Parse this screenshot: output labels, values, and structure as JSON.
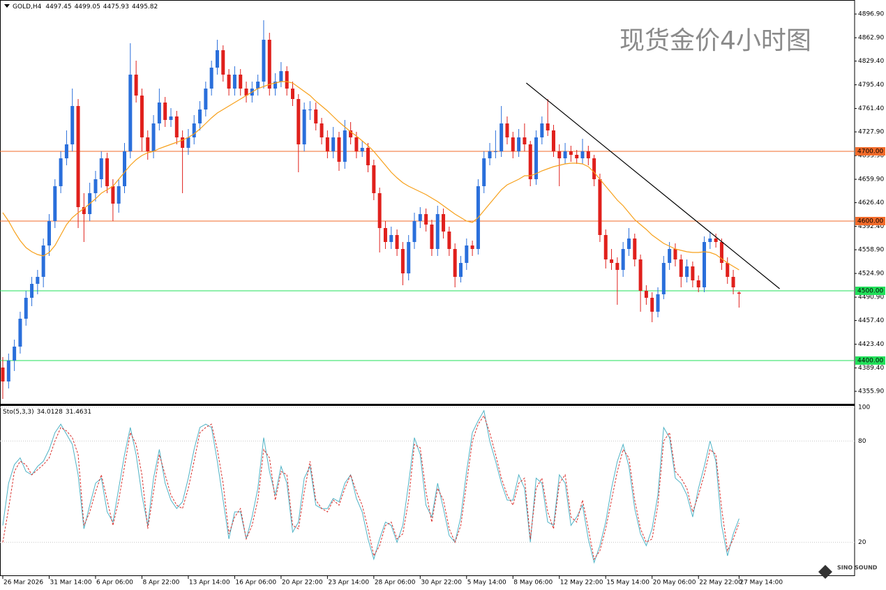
{
  "chart_data": {
    "type": "candlestick",
    "symbol_label": "GOLD,H4",
    "title": "现货金价4小时图",
    "watermark": "SINO SOUND",
    "up_color": "#2a6fdb",
    "down_color": "#e0201c",
    "categories": [
      "26 Mar 2026",
      null,
      null,
      null,
      null,
      null,
      null,
      null,
      "31 Mar 14:00",
      null,
      null,
      null,
      null,
      null,
      null,
      null,
      "6 Apr 06:00",
      null,
      null,
      null,
      null,
      null,
      null,
      null,
      "8 Apr 22:00",
      null,
      null,
      null,
      null,
      null,
      null,
      null,
      "13 Apr 14:00",
      null,
      null,
      null,
      null,
      null,
      null,
      null,
      "16 Apr 06:00",
      null,
      null,
      null,
      null,
      null,
      null,
      null,
      "20 Apr 22:00",
      null,
      null,
      null,
      null,
      null,
      null,
      null,
      "23 Apr 14:00",
      null,
      null,
      null,
      null,
      null,
      null,
      null,
      "28 Apr 06:00",
      null,
      null,
      null,
      null,
      null,
      null,
      null,
      "30 Apr 22:00",
      null,
      null,
      null,
      null,
      null,
      null,
      null,
      "5 May 14:00",
      null,
      null,
      null,
      null,
      null,
      null,
      null,
      "8 May 06:00",
      null,
      null,
      null,
      null,
      null,
      null,
      null,
      "12 May 22:00",
      null,
      null,
      null,
      null,
      null,
      null,
      null,
      "15 May 14:00",
      null,
      null,
      null,
      null,
      null,
      null,
      null,
      "20 May 06:00",
      null,
      null,
      null,
      null,
      null,
      null,
      null,
      "22 May 22:00",
      null,
      null,
      null,
      null,
      null,
      null,
      "27 May 14:00"
    ],
    "open": [
      4390,
      4370,
      4400,
      4420,
      4460,
      4490,
      4510,
      4520,
      4565,
      4600,
      4650,
      4690,
      4710,
      4765,
      4620,
      4610,
      4640,
      4660,
      4690,
      4650,
      4625,
      4650,
      4700,
      4810,
      4780,
      4720,
      4700,
      4740,
      4770,
      4745,
      4750,
      4720,
      4705,
      4720,
      4740,
      4760,
      4790,
      4820,
      4845,
      4810,
      4790,
      4810,
      4790,
      4780,
      4790,
      4800,
      4860,
      4790,
      4800,
      4815,
      4790,
      4775,
      4710,
      4760,
      4760,
      4740,
      4720,
      4700,
      4720,
      4685,
      4730,
      4720,
      4700,
      4705,
      4680,
      4640,
      4590,
      4570,
      4580,
      4560,
      4525,
      4570,
      4600,
      4610,
      4595,
      4560,
      4610,
      4585,
      4560,
      4520,
      4540,
      4565,
      4560,
      4650,
      4690,
      4700,
      4700,
      4740,
      4720,
      4700,
      4720,
      4710,
      4660,
      4720,
      4740,
      4730,
      4700,
      4690,
      4700,
      4695,
      4690,
      4700,
      4690,
      4660,
      4580,
      4545,
      4540,
      4530,
      4560,
      4575,
      4545,
      4500,
      4490,
      4470,
      4495,
      4540,
      4560,
      4545,
      4520,
      4535,
      4515,
      4505,
      4570,
      4575,
      4570,
      4540,
      4520,
      4497.45
    ],
    "high": [
      4405,
      4410,
      4430,
      4470,
      4500,
      4520,
      4530,
      4575,
      4610,
      4660,
      4700,
      4730,
      4790,
      4775,
      4640,
      4655,
      4672,
      4700,
      4698,
      4660,
      4660,
      4712,
      4855,
      4830,
      4790,
      4730,
      4752,
      4790,
      4778,
      4762,
      4758,
      4730,
      4732,
      4752,
      4772,
      4800,
      4830,
      4860,
      4852,
      4818,
      4822,
      4818,
      4800,
      4800,
      4810,
      4888,
      4870,
      4812,
      4828,
      4822,
      4800,
      4782,
      4770,
      4772,
      4770,
      4748,
      4730,
      4735,
      4728,
      4745,
      4742,
      4728,
      4715,
      4712,
      4688,
      4648,
      4600,
      4592,
      4588,
      4570,
      4580,
      4612,
      4620,
      4618,
      4602,
      4622,
      4618,
      4592,
      4568,
      4550,
      4575,
      4572,
      4660,
      4700,
      4712,
      4730,
      4765,
      4750,
      4728,
      4732,
      4740,
      4715,
      4730,
      4750,
      4775,
      4738,
      4710,
      4712,
      4708,
      4702,
      4718,
      4708,
      4695,
      4668,
      4588,
      4560,
      4548,
      4570,
      4590,
      4582,
      4552,
      4508,
      4498,
      4505,
      4550,
      4570,
      4568,
      4552,
      4545,
      4542,
      4522,
      4578,
      4585,
      4582,
      4575,
      4548,
      4530,
      4499.05
    ],
    "low": [
      4345,
      4360,
      4385,
      4410,
      4450,
      4478,
      4495,
      4505,
      4550,
      4590,
      4640,
      4680,
      4700,
      4590,
      4570,
      4600,
      4628,
      4648,
      4640,
      4600,
      4612,
      4640,
      4690,
      4770,
      4700,
      4688,
      4690,
      4730,
      4735,
      4735,
      4710,
      4640,
      4695,
      4710,
      4730,
      4750,
      4780,
      4810,
      4800,
      4780,
      4780,
      4780,
      4770,
      4770,
      4780,
      4790,
      4780,
      4780,
      4792,
      4780,
      4765,
      4670,
      4700,
      4745,
      4730,
      4710,
      4690,
      4690,
      4672,
      4675,
      4710,
      4690,
      4692,
      4670,
      4630,
      4555,
      4560,
      4560,
      4550,
      4508,
      4515,
      4560,
      4590,
      4585,
      4550,
      4550,
      4575,
      4550,
      4505,
      4512,
      4530,
      4550,
      4552,
      4640,
      4680,
      4690,
      4692,
      4710,
      4690,
      4692,
      4700,
      4650,
      4652,
      4710,
      4722,
      4692,
      4650,
      4682,
      4685,
      4682,
      4682,
      4680,
      4650,
      4570,
      4532,
      4530,
      4480,
      4520,
      4550,
      4535,
      4470,
      4480,
      4455,
      4462,
      4488,
      4530,
      4535,
      4505,
      4512,
      4505,
      4498,
      4498,
      4560,
      4562,
      4530,
      4510,
      4495,
      4475.93
    ],
    "close": [
      4370,
      4400,
      4420,
      4460,
      4490,
      4510,
      4520,
      4565,
      4600,
      4650,
      4690,
      4710,
      4765,
      4620,
      4610,
      4640,
      4660,
      4690,
      4650,
      4625,
      4650,
      4700,
      4810,
      4780,
      4720,
      4700,
      4740,
      4770,
      4745,
      4750,
      4720,
      4705,
      4720,
      4740,
      4760,
      4790,
      4820,
      4845,
      4810,
      4790,
      4810,
      4790,
      4780,
      4790,
      4800,
      4860,
      4790,
      4800,
      4815,
      4790,
      4775,
      4710,
      4760,
      4760,
      4740,
      4720,
      4700,
      4720,
      4685,
      4730,
      4720,
      4700,
      4705,
      4680,
      4640,
      4590,
      4570,
      4580,
      4560,
      4525,
      4570,
      4600,
      4610,
      4595,
      4560,
      4610,
      4585,
      4560,
      4520,
      4540,
      4565,
      4560,
      4650,
      4690,
      4700,
      4700,
      4740,
      4720,
      4700,
      4720,
      4710,
      4660,
      4720,
      4740,
      4730,
      4700,
      4690,
      4700,
      4695,
      4690,
      4700,
      4690,
      4660,
      4580,
      4545,
      4540,
      4530,
      4560,
      4575,
      4545,
      4500,
      4490,
      4470,
      4495,
      4540,
      4560,
      4545,
      4520,
      4535,
      4515,
      4505,
      4570,
      4575,
      4570,
      4540,
      4520,
      4505,
      4495.82
    ],
    "ma": {
      "color": "#f7a01a",
      "values": [
        4612,
        4600,
        4585,
        4572,
        4562,
        4556,
        4552,
        4550,
        4555,
        4565,
        4580,
        4595,
        4605,
        4612,
        4618,
        4625,
        4632,
        4640,
        4645,
        4650,
        4660,
        4670,
        4680,
        4688,
        4694,
        4698,
        4700,
        4704,
        4707,
        4710,
        4713,
        4716,
        4720,
        4725,
        4732,
        4740,
        4748,
        4755,
        4760,
        4765,
        4770,
        4775,
        4780,
        4785,
        4790,
        4793,
        4796,
        4798,
        4800,
        4800,
        4798,
        4792,
        4786,
        4780,
        4772,
        4765,
        4758,
        4750,
        4742,
        4735,
        4728,
        4722,
        4715,
        4708,
        4700,
        4690,
        4680,
        4670,
        4662,
        4655,
        4650,
        4646,
        4642,
        4638,
        4633,
        4628,
        4622,
        4616,
        4610,
        4605,
        4600,
        4598,
        4605,
        4615,
        4625,
        4635,
        4645,
        4652,
        4656,
        4660,
        4665,
        4665,
        4668,
        4672,
        4675,
        4678,
        4680,
        4682,
        4683,
        4683,
        4682,
        4678,
        4670,
        4660,
        4650,
        4640,
        4630,
        4622,
        4612,
        4602,
        4595,
        4588,
        4580,
        4574,
        4568,
        4564,
        4560,
        4558,
        4556,
        4555,
        4555,
        4556,
        4555,
        4552,
        4546,
        4540,
        4535,
        4530
      ]
    },
    "hlines": [
      {
        "value": 4700,
        "label": "4700.00",
        "color": "#f26b2a"
      },
      {
        "value": 4600,
        "label": "4600.00",
        "color": "#f26b2a"
      },
      {
        "value": 4500,
        "label": "4500.00",
        "color": "#22e05a"
      },
      {
        "value": 4400,
        "label": "4400.00",
        "color": "#22e05a"
      }
    ],
    "trendline": {
      "x": [
        90.3,
        134
      ],
      "y": [
        4798,
        4503
      ],
      "color": "#000000"
    },
    "ylim": [
      4337,
      4913
    ],
    "yticks": [
      {
        "value": 4896.9,
        "label": "4896.90"
      },
      {
        "value": 4862.9,
        "label": "4862.90"
      },
      {
        "value": 4829.4,
        "label": "4829.40"
      },
      {
        "value": 4795.4,
        "label": "4795.40"
      },
      {
        "value": 4761.4,
        "label": "4761.40"
      },
      {
        "value": 4727.9,
        "label": "4727.90"
      },
      {
        "value": 4693.9,
        "label": "4693.90"
      },
      {
        "value": 4659.9,
        "label": "4659.90"
      },
      {
        "value": 4626.4,
        "label": "4626.40"
      },
      {
        "value": 4592.4,
        "label": "4592.40"
      },
      {
        "value": 4558.9,
        "label": "4558.90"
      },
      {
        "value": 4524.9,
        "label": "4524.90"
      },
      {
        "value": 4490.9,
        "label": "4490.90"
      },
      {
        "value": 4457.4,
        "label": "4457.40"
      },
      {
        "value": 4423.4,
        "label": "4423.40"
      },
      {
        "value": 4389.4,
        "label": "4389.40"
      },
      {
        "value": 4355.9,
        "label": "4355.90"
      }
    ],
    "oscillator": {
      "title": "Sto(5,3,3)",
      "ylim": [
        0,
        100
      ],
      "yticks": [
        20,
        80,
        100
      ],
      "series": [
        {
          "color": "#4fb3c6",
          "values": [
            30,
            55,
            66,
            70,
            62,
            60,
            65,
            68,
            75,
            85,
            90,
            84,
            78,
            60,
            28,
            42,
            55,
            58,
            38,
            32,
            52,
            72,
            88,
            72,
            48,
            30,
            58,
            75,
            55,
            45,
            40,
            44,
            58,
            75,
            88,
            90,
            88,
            68,
            45,
            22,
            38,
            38,
            22,
            35,
            52,
            82,
            62,
            48,
            65,
            55,
            26,
            32,
            58,
            65,
            42,
            40,
            40,
            46,
            44,
            55,
            60,
            46,
            38,
            22,
            10,
            22,
            32,
            30,
            20,
            30,
            55,
            82,
            72,
            42,
            35,
            55,
            40,
            24,
            20,
            35,
            62,
            85,
            92,
            98,
            80,
            68,
            55,
            45,
            45,
            60,
            52,
            20,
            58,
            55,
            32,
            30,
            60,
            55,
            30,
            35,
            42,
            22,
            8,
            18,
            32,
            52,
            68,
            78,
            65,
            40,
            25,
            18,
            28,
            48,
            88,
            82,
            58,
            55,
            48,
            35,
            52,
            65,
            80,
            68,
            30,
            12,
            25,
            34.0128
          ]
        },
        {
          "color": "#d9302c",
          "dashed": true,
          "values": [
            20,
            40,
            62,
            68,
            66,
            60,
            63,
            66,
            70,
            80,
            88,
            86,
            82,
            72,
            30,
            38,
            50,
            60,
            45,
            30,
            45,
            65,
            85,
            78,
            60,
            28,
            50,
            72,
            60,
            48,
            42,
            40,
            52,
            68,
            85,
            88,
            90,
            75,
            55,
            25,
            35,
            40,
            22,
            30,
            45,
            75,
            70,
            45,
            62,
            60,
            30,
            28,
            50,
            68,
            45,
            40,
            38,
            45,
            42,
            52,
            60,
            50,
            42,
            28,
            12,
            18,
            30,
            32,
            22,
            25,
            45,
            78,
            76,
            50,
            32,
            52,
            45,
            28,
            20,
            30,
            55,
            80,
            90,
            95,
            85,
            72,
            58,
            48,
            42,
            55,
            58,
            22,
            52,
            58,
            38,
            28,
            55,
            60,
            35,
            32,
            45,
            28,
            10,
            15,
            28,
            45,
            62,
            75,
            70,
            45,
            28,
            20,
            22,
            42,
            80,
            85,
            62,
            58,
            52,
            38,
            48,
            60,
            75,
            72,
            40,
            15,
            22,
            31.4631
          ]
        }
      ]
    }
  }
}
